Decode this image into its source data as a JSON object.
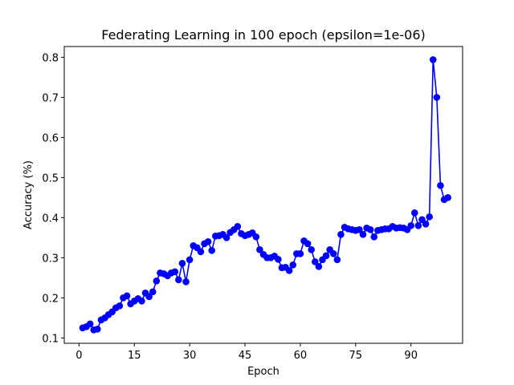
{
  "chart_data": {
    "type": "line",
    "title": "Federating Learning in 100 epoch (epsilon=1e-06)",
    "xlabel": "Epoch",
    "ylabel": "Accuracy (%)",
    "xlim": [
      -4,
      104
    ],
    "ylim": [
      0.0866,
      0.8268
    ],
    "x_ticks": [
      "0",
      "15",
      "30",
      "45",
      "60",
      "75",
      "90"
    ],
    "y_ticks": [
      "0.1",
      "0.2",
      "0.3",
      "0.4",
      "0.5",
      "0.6",
      "0.7",
      "0.8"
    ],
    "grid": false,
    "series": [
      {
        "color": "#0000ff",
        "marker": "circle",
        "x": [
          1,
          2,
          3,
          4,
          5,
          6,
          7,
          8,
          9,
          10,
          11,
          12,
          13,
          14,
          15,
          16,
          17,
          18,
          19,
          20,
          21,
          22,
          23,
          24,
          25,
          26,
          27,
          28,
          29,
          30,
          31,
          32,
          33,
          34,
          35,
          36,
          37,
          38,
          39,
          40,
          41,
          42,
          43,
          44,
          45,
          46,
          47,
          48,
          49,
          50,
          51,
          52,
          53,
          54,
          55,
          56,
          57,
          58,
          59,
          60,
          61,
          62,
          63,
          64,
          65,
          66,
          67,
          68,
          69,
          70,
          71,
          72,
          73,
          74,
          75,
          76,
          77,
          78,
          79,
          80,
          81,
          82,
          83,
          84,
          85,
          86,
          87,
          88,
          89,
          90,
          91,
          92,
          93,
          94,
          95,
          96,
          97,
          98,
          99,
          100
        ],
        "values": [
          0.125,
          0.128,
          0.135,
          0.12,
          0.122,
          0.145,
          0.15,
          0.158,
          0.165,
          0.175,
          0.18,
          0.2,
          0.205,
          0.185,
          0.192,
          0.198,
          0.192,
          0.212,
          0.203,
          0.215,
          0.242,
          0.262,
          0.26,
          0.255,
          0.262,
          0.265,
          0.245,
          0.286,
          0.24,
          0.295,
          0.33,
          0.325,
          0.315,
          0.335,
          0.34,
          0.318,
          0.354,
          0.355,
          0.358,
          0.35,
          0.363,
          0.37,
          0.378,
          0.36,
          0.355,
          0.358,
          0.362,
          0.352,
          0.32,
          0.308,
          0.3,
          0.3,
          0.304,
          0.296,
          0.275,
          0.276,
          0.268,
          0.282,
          0.31,
          0.31,
          0.342,
          0.335,
          0.32,
          0.29,
          0.278,
          0.295,
          0.305,
          0.32,
          0.31,
          0.295,
          0.358,
          0.376,
          0.372,
          0.37,
          0.368,
          0.37,
          0.358,
          0.374,
          0.37,
          0.352,
          0.368,
          0.37,
          0.372,
          0.372,
          0.378,
          0.374,
          0.375,
          0.374,
          0.37,
          0.38,
          0.412,
          0.38,
          0.395,
          0.384,
          0.402,
          0.794,
          0.7,
          0.48,
          0.445,
          0.45
        ]
      }
    ]
  }
}
